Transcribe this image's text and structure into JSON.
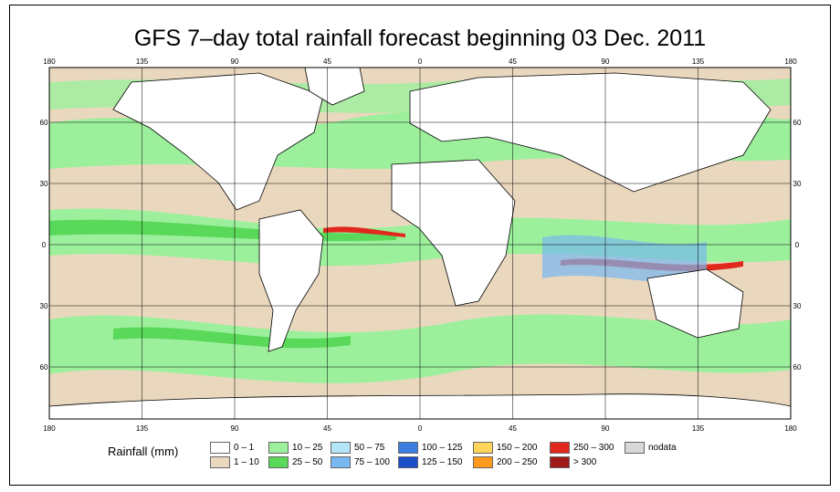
{
  "title": "GFS 7–day total rainfall forecast beginning 03 Dec. 2011",
  "axes": {
    "lon_ticks": [
      "180",
      "135",
      "90",
      "45",
      "0",
      "45",
      "90",
      "135",
      "180"
    ],
    "lat_ticks": [
      "60",
      "30",
      "0",
      "30",
      "60"
    ]
  },
  "legend": {
    "label": "Rainfall (mm)",
    "items": [
      {
        "range": "0 – 1",
        "color": "#ffffff"
      },
      {
        "range": "1 – 10",
        "color": "#ead8be"
      },
      {
        "range": "10 – 25",
        "color": "#9cf09c"
      },
      {
        "range": "25 – 50",
        "color": "#5ad85a"
      },
      {
        "range": "50 – 75",
        "color": "#b4e4f8"
      },
      {
        "range": "75 – 100",
        "color": "#78b8f0"
      },
      {
        "range": "100 – 125",
        "color": "#3c7ee0"
      },
      {
        "range": "125 – 150",
        "color": "#1c4ec8"
      },
      {
        "range": "150 – 200",
        "color": "#ffd45a"
      },
      {
        "range": "200 – 250",
        "color": "#ff9a1c"
      },
      {
        "range": "250 – 300",
        "color": "#e0281c"
      },
      {
        "range": "> 300",
        "color": "#a01818"
      },
      {
        "range": "nodata",
        "color": "#d8d8d8"
      }
    ]
  },
  "colors": {
    "dry": "#ead8be",
    "light": "#9cf09c",
    "moderate": "#5ad85a",
    "heavy": "#78b8f0",
    "extreme": "#e0281c",
    "land": "#ffffff",
    "grid": "#000000"
  }
}
